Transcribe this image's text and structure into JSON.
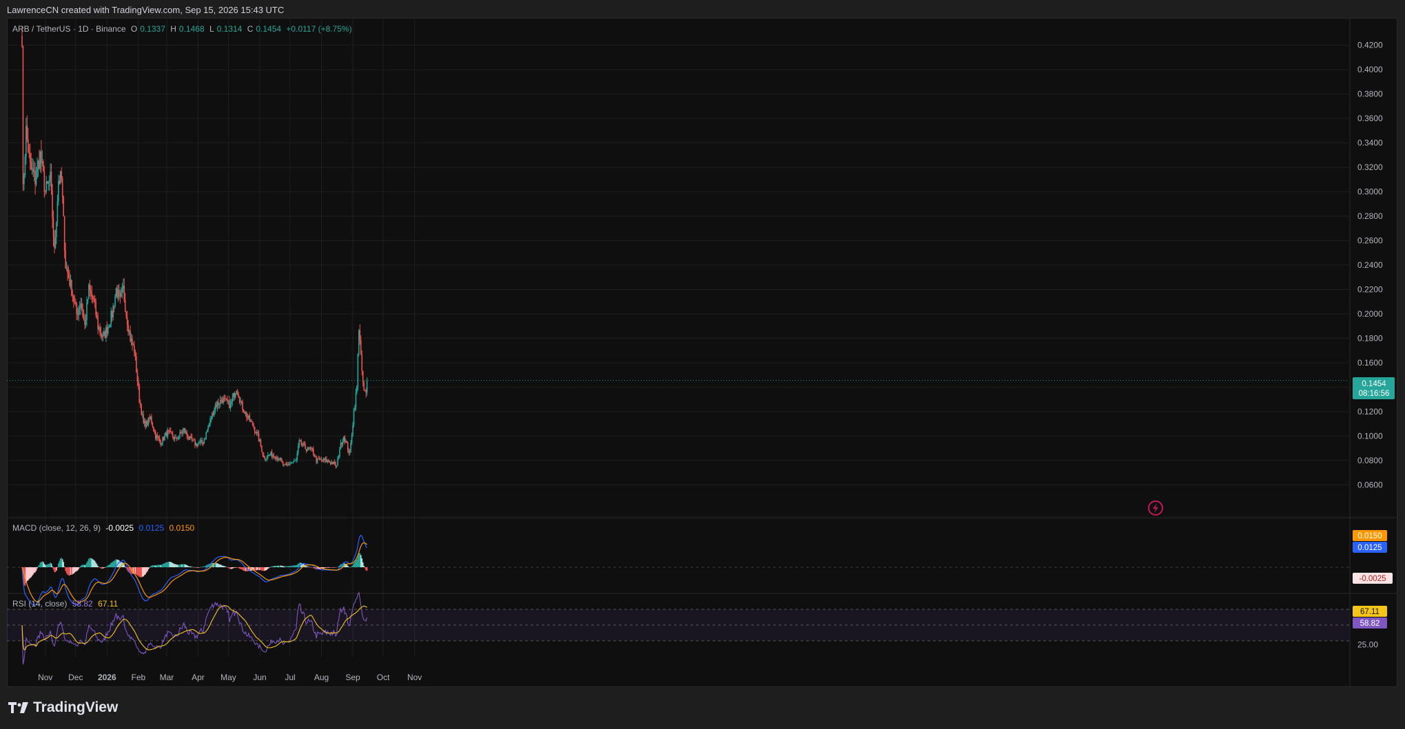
{
  "header": {
    "credit": "LawrenceCN created with TradingView.com, Sep 15, 2026 15:43 UTC"
  },
  "symbol_legend": {
    "symbol": "ARB / TetherUS · 1D · Binance",
    "o_label": "O",
    "o_value": "0.1337",
    "h_label": "H",
    "h_value": "0.1468",
    "l_label": "L",
    "l_value": "0.1314",
    "c_label": "C",
    "c_value": "0.1454",
    "change": "+0.0117 (+8.75%)"
  },
  "macd_legend": {
    "title": "MACD (close, 12, 26, 9)",
    "hist": "-0.0025",
    "macd": "0.0125",
    "signal": "0.0150"
  },
  "rsi_legend": {
    "title": "RSI (14, close)",
    "rsi": "58.82",
    "ma": "67.11"
  },
  "price_tag": {
    "price": "0.1454",
    "countdown": "08:16:56"
  },
  "macd_tags": {
    "signal": "0.0150",
    "macd": "0.0125",
    "hist": "-0.0025"
  },
  "rsi_tags": {
    "ma": "67.11",
    "rsi": "58.82"
  },
  "footer": {
    "brand": "TradingView"
  },
  "colors": {
    "up": "#26a69a",
    "down": "#ef5350",
    "macd": "#2962ff",
    "signal": "#ff9800",
    "rsi": "#7e57c2",
    "rsi_ma": "#f5c518",
    "background": "#0f0f0f",
    "grid": "#1f1f1f"
  },
  "icons": {
    "replay": "lightning-circle-icon",
    "logo": "tradingview-logo-icon"
  },
  "chart_data": [
    {
      "type": "candlestick",
      "title": "ARB / TetherUS · 1D · Binance",
      "x_ticks": [
        "Nov",
        "Dec",
        "2026",
        "Feb",
        "Mar",
        "Apr",
        "May",
        "Jun",
        "Jul",
        "Aug",
        "Sep",
        "Oct",
        "Nov"
      ],
      "y_ticks": [
        "0.0600",
        "0.0800",
        "0.1000",
        "0.1200",
        "0.1400",
        "0.1600",
        "0.1800",
        "0.2000",
        "0.2200",
        "0.2400",
        "0.2600",
        "0.2800",
        "0.3000",
        "0.3200",
        "0.3400",
        "0.3600",
        "0.3800",
        "0.4000",
        "0.4200"
      ],
      "ylim": [
        0.05,
        0.43
      ],
      "last_price": 0.1454,
      "grid": true,
      "close_path": [
        {
          "date": "2025-10-09",
          "close": 0.43
        },
        {
          "date": "2025-10-10",
          "close": 0.3
        },
        {
          "date": "2025-10-13",
          "close": 0.35
        },
        {
          "date": "2025-10-17",
          "close": 0.32
        },
        {
          "date": "2025-10-22",
          "close": 0.31
        },
        {
          "date": "2025-10-27",
          "close": 0.33
        },
        {
          "date": "2025-11-01",
          "close": 0.3
        },
        {
          "date": "2025-11-06",
          "close": 0.31
        },
        {
          "date": "2025-11-10",
          "close": 0.25
        },
        {
          "date": "2025-11-14",
          "close": 0.31
        },
        {
          "date": "2025-11-17",
          "close": 0.31
        },
        {
          "date": "2025-11-21",
          "close": 0.24
        },
        {
          "date": "2025-11-27",
          "close": 0.22
        },
        {
          "date": "2025-12-02",
          "close": 0.2
        },
        {
          "date": "2025-12-06",
          "close": 0.21
        },
        {
          "date": "2025-12-10",
          "close": 0.19
        },
        {
          "date": "2025-12-14",
          "close": 0.22
        },
        {
          "date": "2025-12-19",
          "close": 0.21
        },
        {
          "date": "2025-12-23",
          "close": 0.19
        },
        {
          "date": "2025-12-28",
          "close": 0.18
        },
        {
          "date": "2026-01-02",
          "close": 0.19
        },
        {
          "date": "2026-01-06",
          "close": 0.2
        },
        {
          "date": "2026-01-10",
          "close": 0.22
        },
        {
          "date": "2026-01-14",
          "close": 0.21
        },
        {
          "date": "2026-01-17",
          "close": 0.22
        },
        {
          "date": "2026-01-20",
          "close": 0.2
        },
        {
          "date": "2026-01-24",
          "close": 0.18
        },
        {
          "date": "2026-01-28",
          "close": 0.17
        },
        {
          "date": "2026-02-02",
          "close": 0.13
        },
        {
          "date": "2026-02-06",
          "close": 0.11
        },
        {
          "date": "2026-02-09",
          "close": 0.11
        },
        {
          "date": "2026-02-13",
          "close": 0.115
        },
        {
          "date": "2026-02-18",
          "close": 0.1
        },
        {
          "date": "2026-02-23",
          "close": 0.095
        },
        {
          "date": "2026-03-02",
          "close": 0.103
        },
        {
          "date": "2026-03-10",
          "close": 0.097
        },
        {
          "date": "2026-03-18",
          "close": 0.105
        },
        {
          "date": "2026-03-23",
          "close": 0.098
        },
        {
          "date": "2026-03-30",
          "close": 0.093
        },
        {
          "date": "2026-04-06",
          "close": 0.095
        },
        {
          "date": "2026-04-12",
          "close": 0.11
        },
        {
          "date": "2026-04-18",
          "close": 0.125
        },
        {
          "date": "2026-04-25",
          "close": 0.13
        },
        {
          "date": "2026-05-03",
          "close": 0.125
        },
        {
          "date": "2026-05-09",
          "close": 0.14
        },
        {
          "date": "2026-05-14",
          "close": 0.125
        },
        {
          "date": "2026-05-20",
          "close": 0.115
        },
        {
          "date": "2026-05-26",
          "close": 0.108
        },
        {
          "date": "2026-06-01",
          "close": 0.095
        },
        {
          "date": "2026-06-05",
          "close": 0.082
        },
        {
          "date": "2026-06-12",
          "close": 0.085
        },
        {
          "date": "2026-06-20",
          "close": 0.082
        },
        {
          "date": "2026-06-25",
          "close": 0.075
        },
        {
          "date": "2026-07-02",
          "close": 0.078
        },
        {
          "date": "2026-07-07",
          "close": 0.08
        },
        {
          "date": "2026-07-10",
          "close": 0.095
        },
        {
          "date": "2026-07-16",
          "close": 0.09
        },
        {
          "date": "2026-07-23",
          "close": 0.088
        },
        {
          "date": "2026-07-27",
          "close": 0.08
        },
        {
          "date": "2026-08-04",
          "close": 0.08
        },
        {
          "date": "2026-08-12",
          "close": 0.078
        },
        {
          "date": "2026-08-16",
          "close": 0.075
        },
        {
          "date": "2026-08-19",
          "close": 0.09
        },
        {
          "date": "2026-08-23",
          "close": 0.1
        },
        {
          "date": "2026-08-29",
          "close": 0.085
        },
        {
          "date": "2026-09-02",
          "close": 0.12
        },
        {
          "date": "2026-09-05",
          "close": 0.14
        },
        {
          "date": "2026-09-07",
          "close": 0.19
        },
        {
          "date": "2026-09-08",
          "close": 0.18
        },
        {
          "date": "2026-09-10",
          "close": 0.15
        },
        {
          "date": "2026-09-12",
          "close": 0.137
        },
        {
          "date": "2026-09-14",
          "close": 0.134
        },
        {
          "date": "2026-09-15",
          "close": 0.1454
        }
      ]
    },
    {
      "type": "line",
      "title": "MACD (close, 12, 26, 9)",
      "series": [
        {
          "name": "MACD",
          "last": 0.0125
        },
        {
          "name": "Signal",
          "last": 0.015
        },
        {
          "name": "Histogram",
          "last": -0.0025
        }
      ]
    },
    {
      "type": "line",
      "title": "RSI (14, close)",
      "y_ticks": [
        "25.00",
        "50.00"
      ],
      "bands": [
        30,
        50,
        70
      ],
      "series": [
        {
          "name": "RSI",
          "last": 58.82
        },
        {
          "name": "RSI MA",
          "last": 67.11
        }
      ]
    }
  ]
}
